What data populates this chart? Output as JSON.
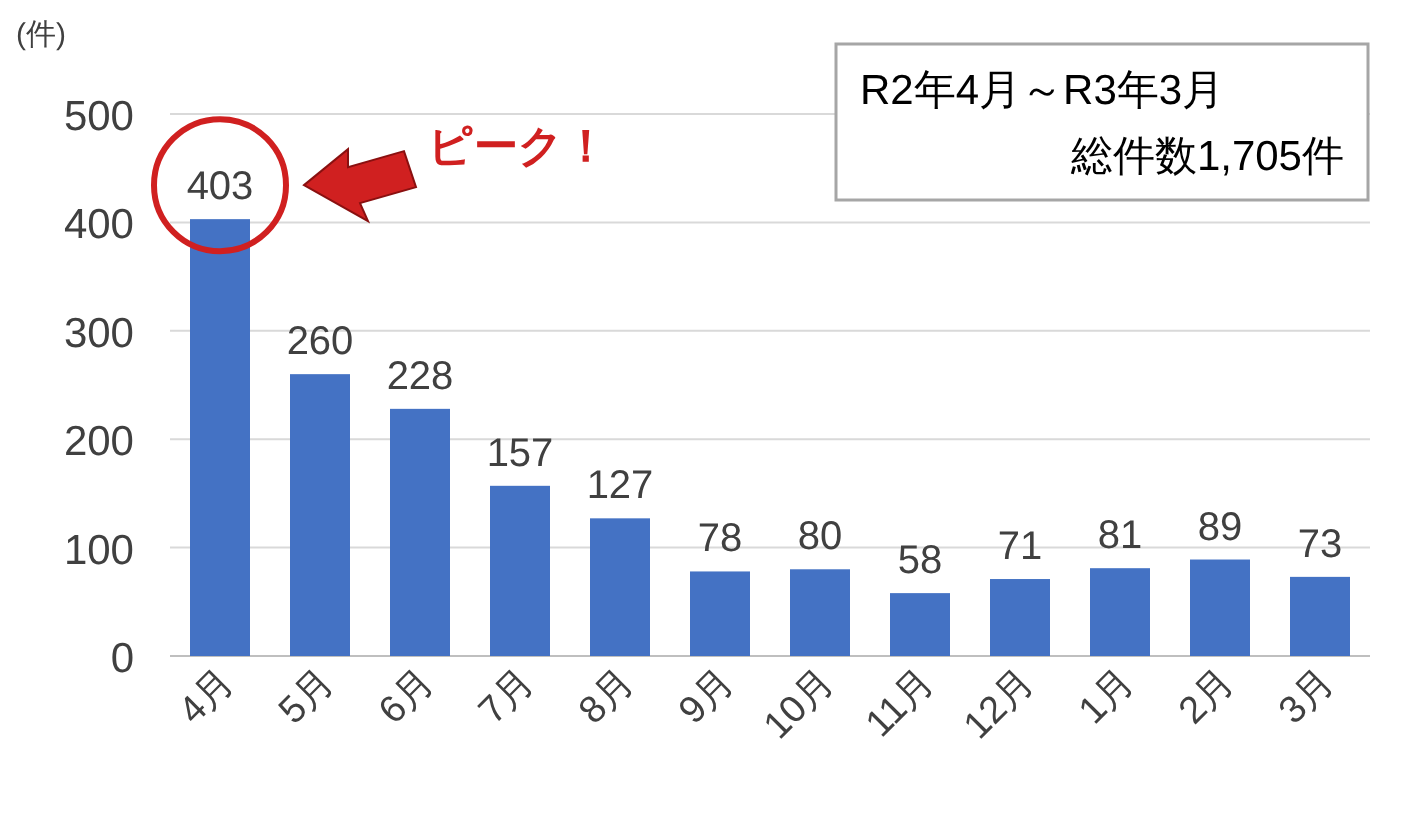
{
  "chart_data": {
    "type": "bar",
    "ylabel": "(件)",
    "categories": [
      "4月",
      "5月",
      "6月",
      "7月",
      "8月",
      "9月",
      "10月",
      "11月",
      "12月",
      "1月",
      "2月",
      "3月"
    ],
    "values": [
      403,
      260,
      228,
      157,
      127,
      78,
      80,
      58,
      71,
      81,
      89,
      73
    ],
    "color": "#4472c4",
    "ylim": [
      0,
      500
    ],
    "yticks": [
      0,
      100,
      200,
      300,
      400,
      500
    ],
    "grid": "y",
    "data_labels": true,
    "annotations": [
      "ピーク！",
      "R2年4月～R3年3月",
      "総件数1,705件"
    ]
  }
}
